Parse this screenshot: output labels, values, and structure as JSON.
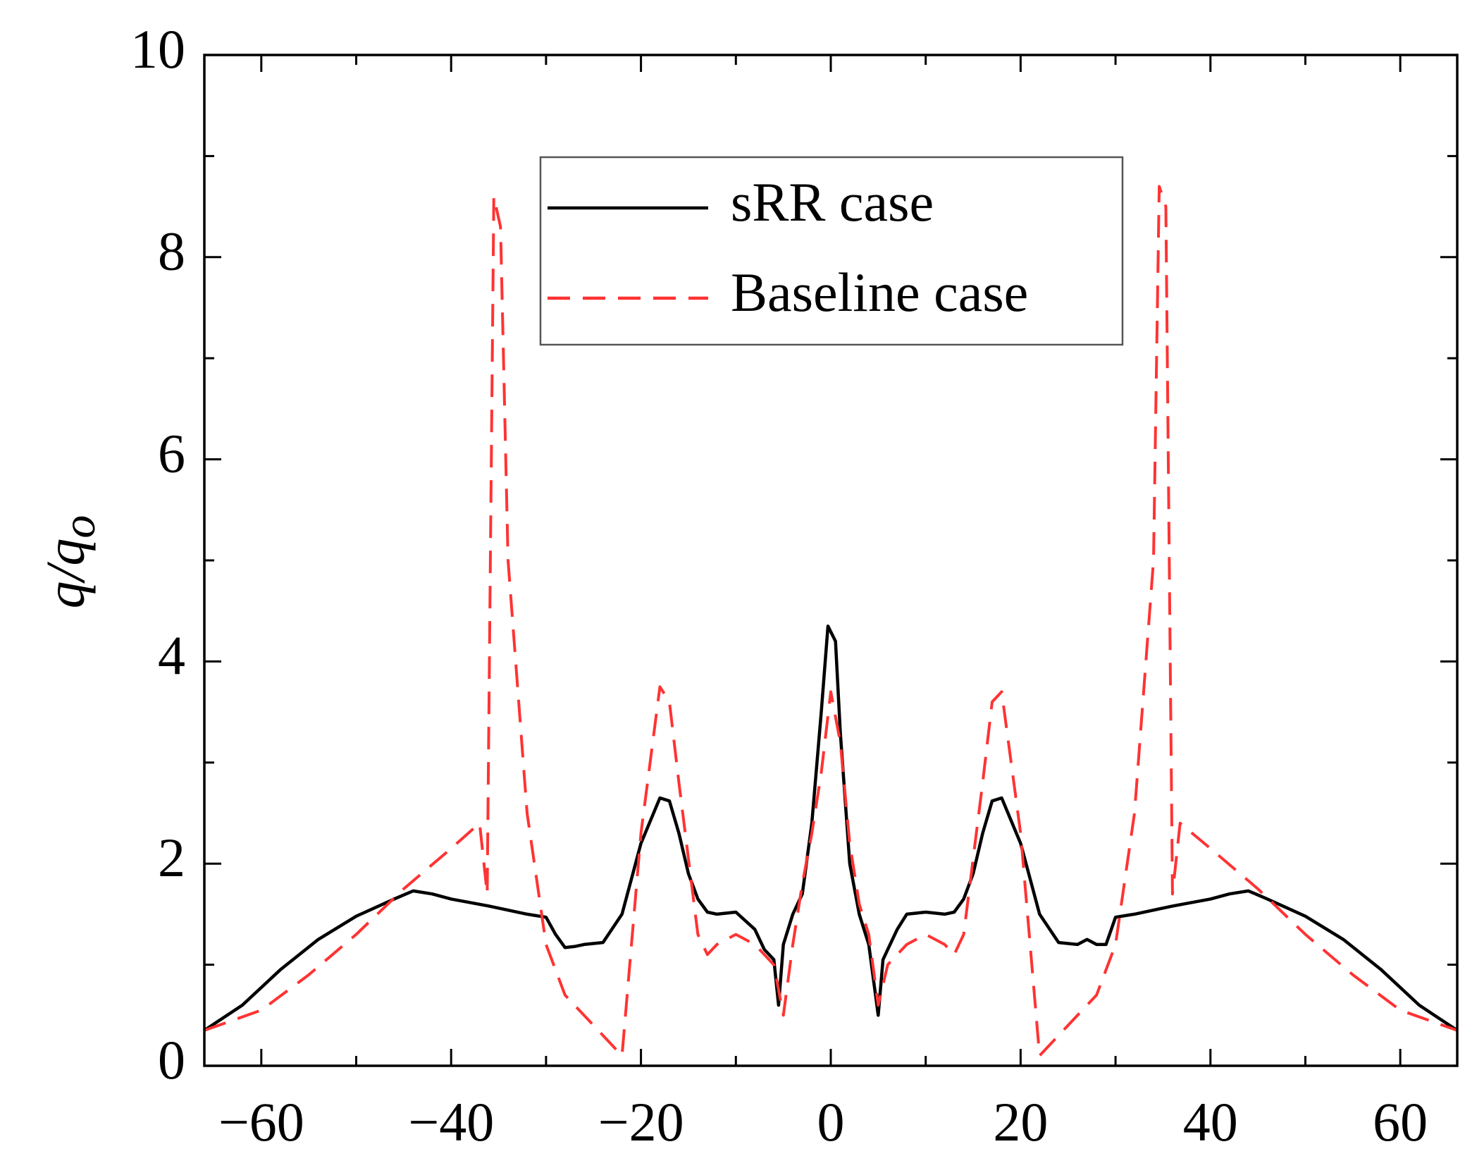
{
  "chart_data": {
    "type": "line",
    "ylabel": [
      "q/q",
      "o"
    ],
    "xlim": [
      -66,
      66
    ],
    "ylim": [
      0,
      10
    ],
    "xticks": [
      {
        "value": -60,
        "label": "−60"
      },
      {
        "value": -40,
        "label": "−40"
      },
      {
        "value": -20,
        "label": "−20"
      },
      0,
      20,
      40,
      60
    ],
    "yticks": [
      0,
      2,
      4,
      6,
      8,
      10
    ],
    "xminorticks": [
      -50,
      -30,
      -10,
      10,
      30,
      50
    ],
    "yminorticks": [
      1,
      3,
      5,
      7,
      9
    ],
    "legend": "upper center",
    "series": [
      {
        "name": "sRR case",
        "color": "#000000",
        "dash": false,
        "x": [
          -66,
          -62,
          -58,
          -54,
          -50,
          -46,
          -44,
          -42,
          -40,
          -36,
          -32,
          -30,
          -29,
          -28,
          -27,
          -26,
          -24,
          -22,
          -20,
          -18,
          -17,
          -16,
          -15,
          -14,
          -13,
          -12,
          -10,
          -8,
          -7,
          -6,
          -5.5,
          -5,
          -4,
          -3,
          -2,
          -1,
          -0.3,
          0.5,
          1,
          2,
          3,
          4,
          5,
          5.5,
          6,
          7,
          8,
          10,
          12,
          13,
          14,
          15,
          16,
          17,
          18,
          20,
          22,
          24,
          26,
          27,
          28,
          29,
          30,
          32,
          36,
          40,
          42,
          44,
          46,
          50,
          54,
          58,
          62,
          66
        ],
        "values": [
          0.35,
          0.6,
          0.95,
          1.25,
          1.48,
          1.65,
          1.73,
          1.7,
          1.65,
          1.58,
          1.5,
          1.47,
          1.3,
          1.17,
          1.18,
          1.2,
          1.22,
          1.5,
          2.2,
          2.65,
          2.62,
          2.3,
          1.9,
          1.65,
          1.52,
          1.5,
          1.52,
          1.35,
          1.15,
          1.05,
          0.6,
          1.2,
          1.5,
          1.7,
          2.4,
          3.5,
          4.35,
          4.2,
          3.3,
          2.0,
          1.5,
          1.2,
          0.5,
          1.05,
          1.15,
          1.35,
          1.5,
          1.52,
          1.5,
          1.52,
          1.65,
          1.9,
          2.3,
          2.62,
          2.65,
          2.2,
          1.5,
          1.22,
          1.2,
          1.25,
          1.2,
          1.2,
          1.47,
          1.5,
          1.58,
          1.65,
          1.7,
          1.73,
          1.65,
          1.48,
          1.25,
          0.95,
          0.6,
          0.35
        ]
      },
      {
        "name": "Baseline case",
        "color": "#ff3333",
        "dash": true,
        "x": [
          -66,
          -60,
          -55,
          -50,
          -45,
          -40,
          -37,
          -36.2,
          -35.5,
          -34.8,
          -34,
          -32,
          -30,
          -28,
          -25,
          -22,
          -20,
          -18,
          -17,
          -16,
          -14,
          -13,
          -12,
          -10,
          -8,
          -6,
          -5,
          -4,
          -3,
          -2,
          -1,
          0,
          1,
          2,
          3,
          4,
          5,
          6,
          8,
          10,
          12,
          13,
          14,
          16,
          17,
          18,
          20,
          22,
          25,
          28,
          30,
          32,
          34,
          34.6,
          35.3,
          36,
          36.8,
          40,
          45,
          50,
          55,
          60,
          66
        ],
        "values": [
          0.35,
          0.55,
          0.9,
          1.3,
          1.75,
          2.15,
          2.4,
          1.7,
          8.6,
          8.3,
          5,
          2.5,
          1.2,
          0.7,
          0.4,
          0.1,
          2.3,
          3.75,
          3.6,
          2.8,
          1.3,
          1.1,
          1.2,
          1.3,
          1.2,
          1.0,
          0.5,
          1.2,
          1.8,
          2.3,
          2.9,
          3.7,
          3.2,
          2.2,
          1.6,
          1.3,
          0.6,
          1.0,
          1.2,
          1.3,
          1.2,
          1.1,
          1.3,
          2.8,
          3.6,
          3.7,
          2.3,
          0.1,
          0.4,
          0.7,
          1.2,
          2.5,
          5,
          8.7,
          8.5,
          1.7,
          2.4,
          2.15,
          1.75,
          1.3,
          0.9,
          0.55,
          0.35
        ]
      }
    ]
  }
}
